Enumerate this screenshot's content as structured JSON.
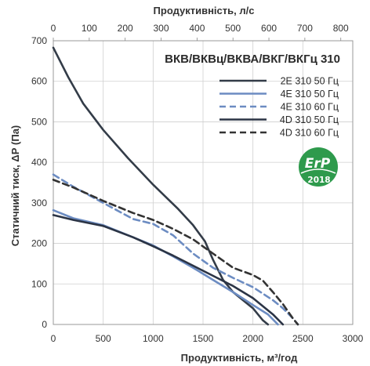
{
  "chart_data": {
    "type": "line",
    "title": "ВКВ/ВКВц/ВКВА/ВКГ/ВКГц 310",
    "xlabel": "Продуктивність, м³/год",
    "ylabel": "Статичний тиск, ΔР (Па)",
    "x2label": "Продуктивність, л/с",
    "xlim": [
      0,
      3000
    ],
    "ylim": [
      0,
      700
    ],
    "x2lim": [
      0,
      833.33
    ],
    "xticks": [
      "0",
      "500",
      "1000",
      "1500",
      "2000",
      "2500",
      "3000"
    ],
    "yticks": [
      "0",
      "100",
      "200",
      "300",
      "400",
      "500",
      "600",
      "700"
    ],
    "x2ticks": [
      "0",
      "100",
      "200",
      "300",
      "400",
      "500",
      "600",
      "700",
      "800"
    ],
    "grid": true,
    "legend_position": "top-right",
    "series": [
      {
        "name": "2E 310 50 Гц",
        "color": "#333c48",
        "dash": "solid",
        "x": [
          0,
          150,
          300,
          500,
          750,
          1000,
          1250,
          1400,
          1520,
          1600,
          1700,
          1800,
          1900,
          2000,
          2100,
          2150
        ],
        "y": [
          683,
          610,
          545,
          480,
          410,
          345,
          285,
          245,
          205,
          160,
          110,
          80,
          60,
          40,
          10,
          0
        ]
      },
      {
        "name": "4E 310 50 Гц",
        "color": "#6c8cc2",
        "dash": "solid",
        "x": [
          0,
          200,
          500,
          800,
          1000,
          1200,
          1400,
          1600,
          1800,
          2000,
          2150,
          2250
        ],
        "y": [
          282,
          262,
          245,
          215,
          195,
          168,
          140,
          110,
          80,
          48,
          25,
          0
        ]
      },
      {
        "name": "4E 310 60 Гц",
        "color": "#6c8cc2",
        "dash": "dashed",
        "x": [
          0,
          200,
          500,
          800,
          1000,
          1200,
          1400,
          1600,
          1800,
          2000,
          2200,
          2300,
          2400,
          2450
        ],
        "y": [
          370,
          340,
          300,
          260,
          248,
          220,
          175,
          140,
          115,
          92,
          60,
          40,
          15,
          0
        ]
      },
      {
        "name": "4D 310 50 Гц",
        "color": "#2b3445",
        "dash": "solid",
        "x": [
          0,
          200,
          500,
          800,
          1000,
          1200,
          1400,
          1600,
          1800,
          2000,
          2200,
          2300
        ],
        "y": [
          270,
          258,
          243,
          215,
          193,
          170,
          145,
          120,
          95,
          65,
          25,
          0
        ]
      },
      {
        "name": "4D 310 60 Гц",
        "color": "#333333",
        "dash": "dashed",
        "x": [
          0,
          200,
          500,
          800,
          1000,
          1200,
          1400,
          1600,
          1800,
          2000,
          2100,
          2200,
          2300,
          2400,
          2450
        ],
        "y": [
          357,
          338,
          305,
          275,
          258,
          236,
          210,
          175,
          140,
          122,
          108,
          80,
          50,
          15,
          0
        ]
      }
    ]
  },
  "badge": {
    "text": "ErP",
    "year": "2018",
    "color": "#2e9a4c"
  }
}
